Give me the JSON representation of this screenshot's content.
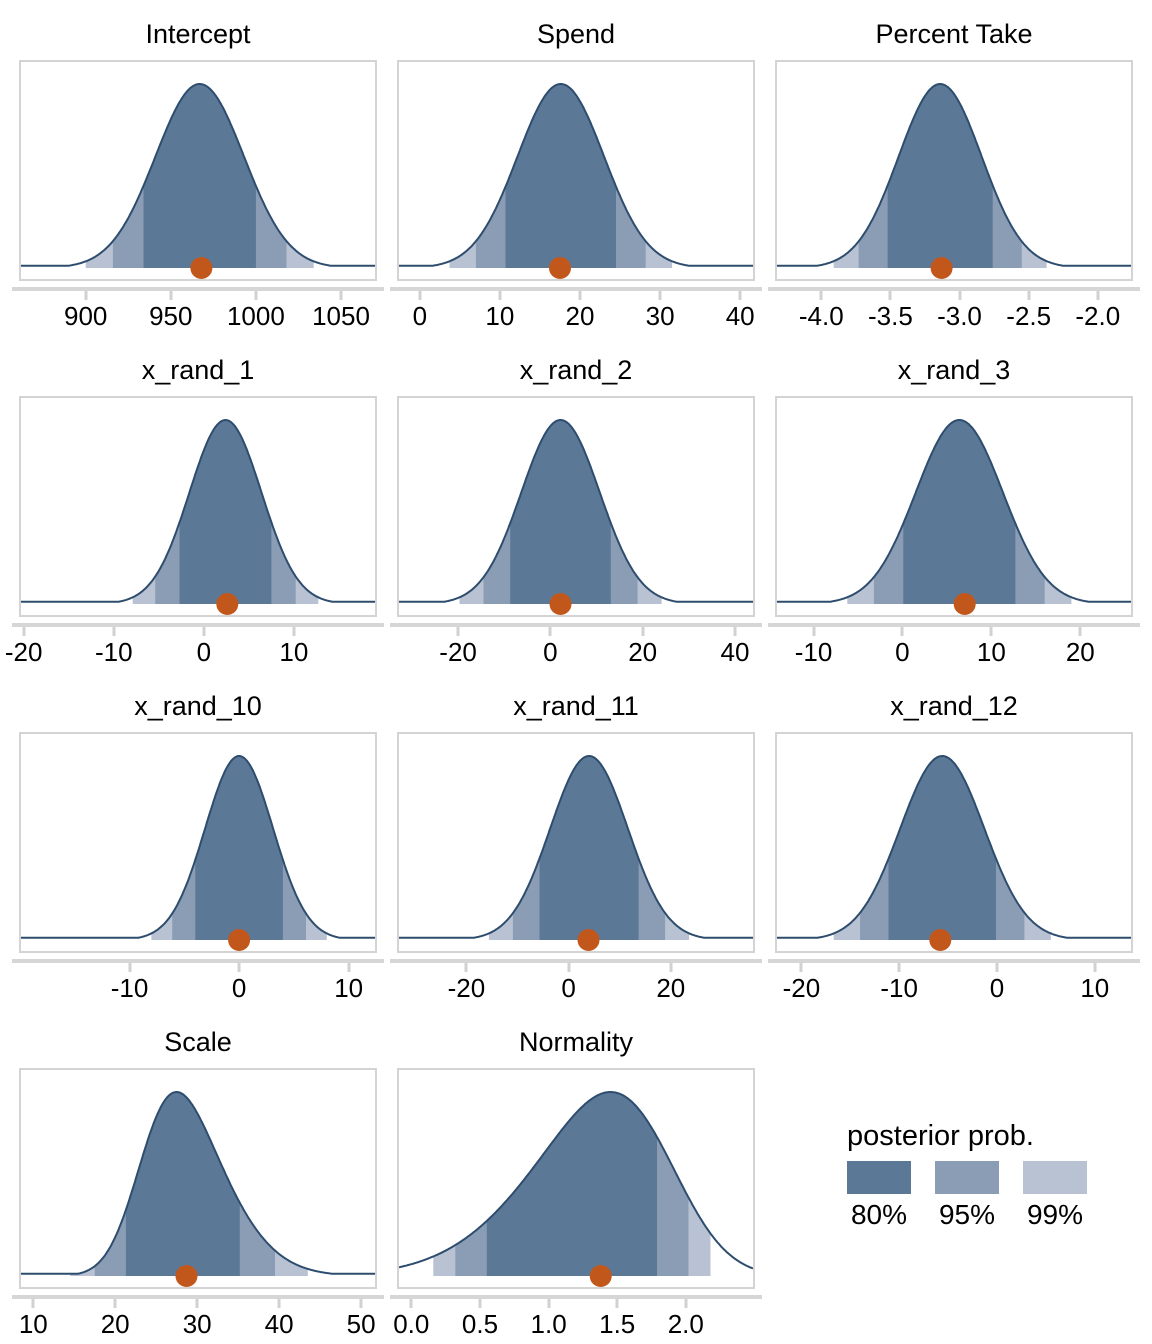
{
  "figure": {
    "colors": {
      "fill_80": "#5C7897",
      "fill_95": "#8B9DB5",
      "fill_99": "#B8C2D2",
      "curve_line": "#2E4D6E",
      "point_dot": "#C2571B",
      "panel_border": "#D4D4D4",
      "axis_line": "#D6D6D6",
      "tick_mark": "#D1D1D1",
      "text": "#000000"
    }
  },
  "legend": {
    "title": "posterior prob.",
    "items": [
      {
        "label": "80%",
        "color": "#5C7897"
      },
      {
        "label": "95%",
        "color": "#8B9DB5"
      },
      {
        "label": "99%",
        "color": "#B8C2D2"
      }
    ]
  },
  "chart_data": {
    "type": "area",
    "subtype": "posterior-density-grid",
    "legend_position": "bottom-right",
    "panels": [
      {
        "title": "Intercept",
        "xlim": [
          862,
          1070
        ],
        "tick_values": [
          900,
          950,
          1000,
          1050
        ],
        "tick_labels": [
          "900",
          "950",
          "1000",
          "1050"
        ],
        "density": {
          "location": 967,
          "scale": 26,
          "skew": 0
        },
        "point_estimate": 968,
        "ci80": [
          934,
          1000
        ],
        "ci95": [
          916,
          1018
        ],
        "ci99": [
          900,
          1034
        ]
      },
      {
        "title": "Spend",
        "xlim": [
          -2.6,
          41.6
        ],
        "tick_values": [
          0,
          10,
          20,
          30,
          40
        ],
        "tick_labels": [
          "0",
          "10",
          "20",
          "30",
          "40"
        ],
        "density": {
          "location": 17.6,
          "scale": 5.4,
          "skew": 0
        },
        "point_estimate": 17.5,
        "ci80": [
          10.7,
          24.5
        ],
        "ci95": [
          7.0,
          28.2
        ],
        "ci99": [
          3.7,
          31.5
        ]
      },
      {
        "title": "Percent Take",
        "xlim": [
          -4.32,
          -1.76
        ],
        "tick_values": [
          -4.0,
          -3.5,
          -3.0,
          -2.5,
          -2.0
        ],
        "tick_labels": [
          "-4.0",
          "-3.5",
          "-3.0",
          "-2.5",
          "-2.0"
        ],
        "density": {
          "location": -3.14,
          "scale": 0.3,
          "skew": 0
        },
        "point_estimate": -3.13,
        "ci80": [
          -3.52,
          -2.76
        ],
        "ci95": [
          -3.73,
          -2.55
        ],
        "ci99": [
          -3.91,
          -2.37
        ]
      },
      {
        "title": "x_rand_1",
        "xlim": [
          -20.3,
          19.0
        ],
        "tick_values": [
          -20,
          -10,
          0,
          10
        ],
        "tick_labels": [
          "-20",
          "-10",
          "0",
          "10"
        ],
        "density": {
          "location": 2.4,
          "scale": 4.0,
          "skew": 0
        },
        "point_estimate": 2.6,
        "ci80": [
          -2.7,
          7.5
        ],
        "ci95": [
          -5.4,
          10.2
        ],
        "ci99": [
          -7.9,
          12.7
        ]
      },
      {
        "title": "x_rand_2",
        "xlim": [
          -32.8,
          43.9
        ],
        "tick_values": [
          -20,
          0,
          20,
          40
        ],
        "tick_labels": [
          "-20",
          "0",
          "20",
          "40"
        ],
        "density": {
          "location": 2.2,
          "scale": 8.5,
          "skew": 0
        },
        "point_estimate": 2.2,
        "ci80": [
          -8.7,
          13.1
        ],
        "ci95": [
          -14.5,
          18.9
        ],
        "ci99": [
          -19.7,
          24.1
        ]
      },
      {
        "title": "x_rand_3",
        "xlim": [
          -14.1,
          25.7
        ],
        "tick_values": [
          -10,
          0,
          10,
          20
        ],
        "tick_labels": [
          "-10",
          "0",
          "10",
          "20"
        ],
        "density": {
          "location": 6.4,
          "scale": 4.9,
          "skew": 0
        },
        "point_estimate": 7.0,
        "ci80": [
          0.1,
          12.7
        ],
        "ci95": [
          -3.2,
          16.0
        ],
        "ci99": [
          -6.2,
          19.0
        ]
      },
      {
        "title": "x_rand_10",
        "xlim": [
          -19.9,
          12.4
        ],
        "tick_values": [
          -10,
          0,
          10
        ],
        "tick_labels": [
          "-10",
          "0",
          "10"
        ],
        "density": {
          "location": 0,
          "scale": 3.1,
          "skew": 0
        },
        "point_estimate": 0.0,
        "ci80": [
          -4.0,
          4.0
        ],
        "ci95": [
          -6.1,
          6.1
        ],
        "ci99": [
          -8.0,
          8.0
        ]
      },
      {
        "title": "x_rand_11",
        "xlim": [
          -33.2,
          36.1
        ],
        "tick_values": [
          -20,
          0,
          20
        ],
        "tick_labels": [
          "-20",
          "0",
          "20"
        ],
        "density": {
          "location": 4.0,
          "scale": 7.6,
          "skew": 0
        },
        "point_estimate": 3.9,
        "ci80": [
          -5.7,
          13.7
        ],
        "ci95": [
          -10.9,
          18.9
        ],
        "ci99": [
          -15.6,
          23.6
        ]
      },
      {
        "title": "x_rand_12",
        "xlim": [
          -22.5,
          13.7
        ],
        "tick_values": [
          -20,
          -10,
          0,
          10
        ],
        "tick_labels": [
          "-20",
          "-10",
          "0",
          "10"
        ],
        "density": {
          "location": -5.6,
          "scale": 4.3,
          "skew": 0
        },
        "point_estimate": -5.8,
        "ci80": [
          -11.1,
          -0.1
        ],
        "ci95": [
          -14.0,
          2.8
        ],
        "ci99": [
          -16.7,
          5.5
        ]
      },
      {
        "title": "Scale",
        "xlim": [
          8.5,
          51.7
        ],
        "tick_values": [
          10,
          20,
          30,
          40,
          50
        ],
        "tick_labels": [
          "10",
          "20",
          "30",
          "40",
          "50"
        ],
        "density": {
          "location": 23.5,
          "scale": 7.5,
          "skew": 2
        },
        "point_estimate": 28.7,
        "ci80": [
          21.3,
          35.2
        ],
        "ci95": [
          17.5,
          39.5
        ],
        "ci99": [
          14.5,
          43.5
        ]
      },
      {
        "title": "Normality",
        "xlim": [
          -0.09,
          2.49
        ],
        "tick_values": [
          0.0,
          0.5,
          1.0,
          1.5,
          2.0
        ],
        "tick_labels": [
          "0.0",
          "0.5",
          "1.0",
          "1.5",
          "2.0"
        ],
        "density": {
          "location": 1.85,
          "scale": 0.75,
          "skew": -2
        },
        "point_estimate": 1.38,
        "ci80": [
          0.55,
          1.79
        ],
        "ci95": [
          0.32,
          2.02
        ],
        "ci99": [
          0.16,
          2.18
        ]
      }
    ]
  }
}
